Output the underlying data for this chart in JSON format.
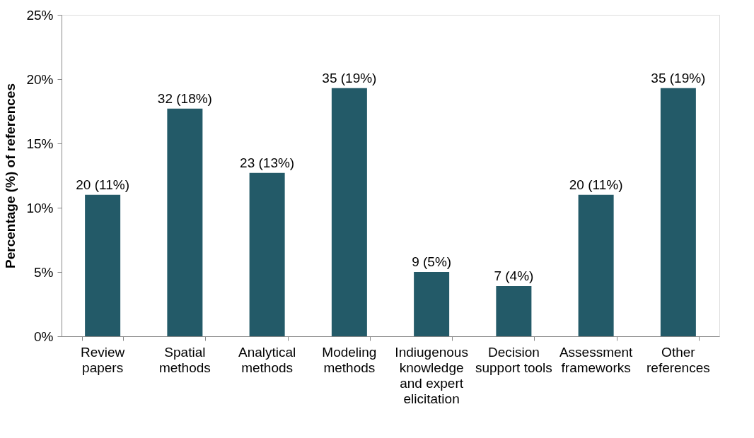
{
  "chart_data": {
    "type": "bar",
    "ylabel": "Percentage (%) of references",
    "categories": [
      "Review\npapers",
      "Spatial\nmethods",
      "Analytical\nmethods",
      "Modeling\nmethods",
      "Indiugenous\nknowledge\nand expert\nelicitation",
      "Decision\nsupport tools",
      "Assessment\nframeworks",
      "Other\nreferences"
    ],
    "values": [
      11.0,
      17.7,
      12.7,
      19.3,
      5.0,
      3.9,
      11.0,
      19.3
    ],
    "value_labels": [
      "20 (11%)",
      "32 (18%)",
      "23 (13%)",
      "35 (19%)",
      "9 (5%)",
      "7 (4%)",
      "20 (11%)",
      "35 (19%)"
    ],
    "color": "#235a68",
    "ylim": [
      0,
      25
    ],
    "yticks": [
      {
        "value": 0,
        "label": "0%"
      },
      {
        "value": 5,
        "label": "5%"
      },
      {
        "value": 10,
        "label": "10%"
      },
      {
        "value": 15,
        "label": "15%"
      },
      {
        "value": 20,
        "label": "20%"
      },
      {
        "value": 25,
        "label": "25%"
      }
    ],
    "grid": false
  }
}
